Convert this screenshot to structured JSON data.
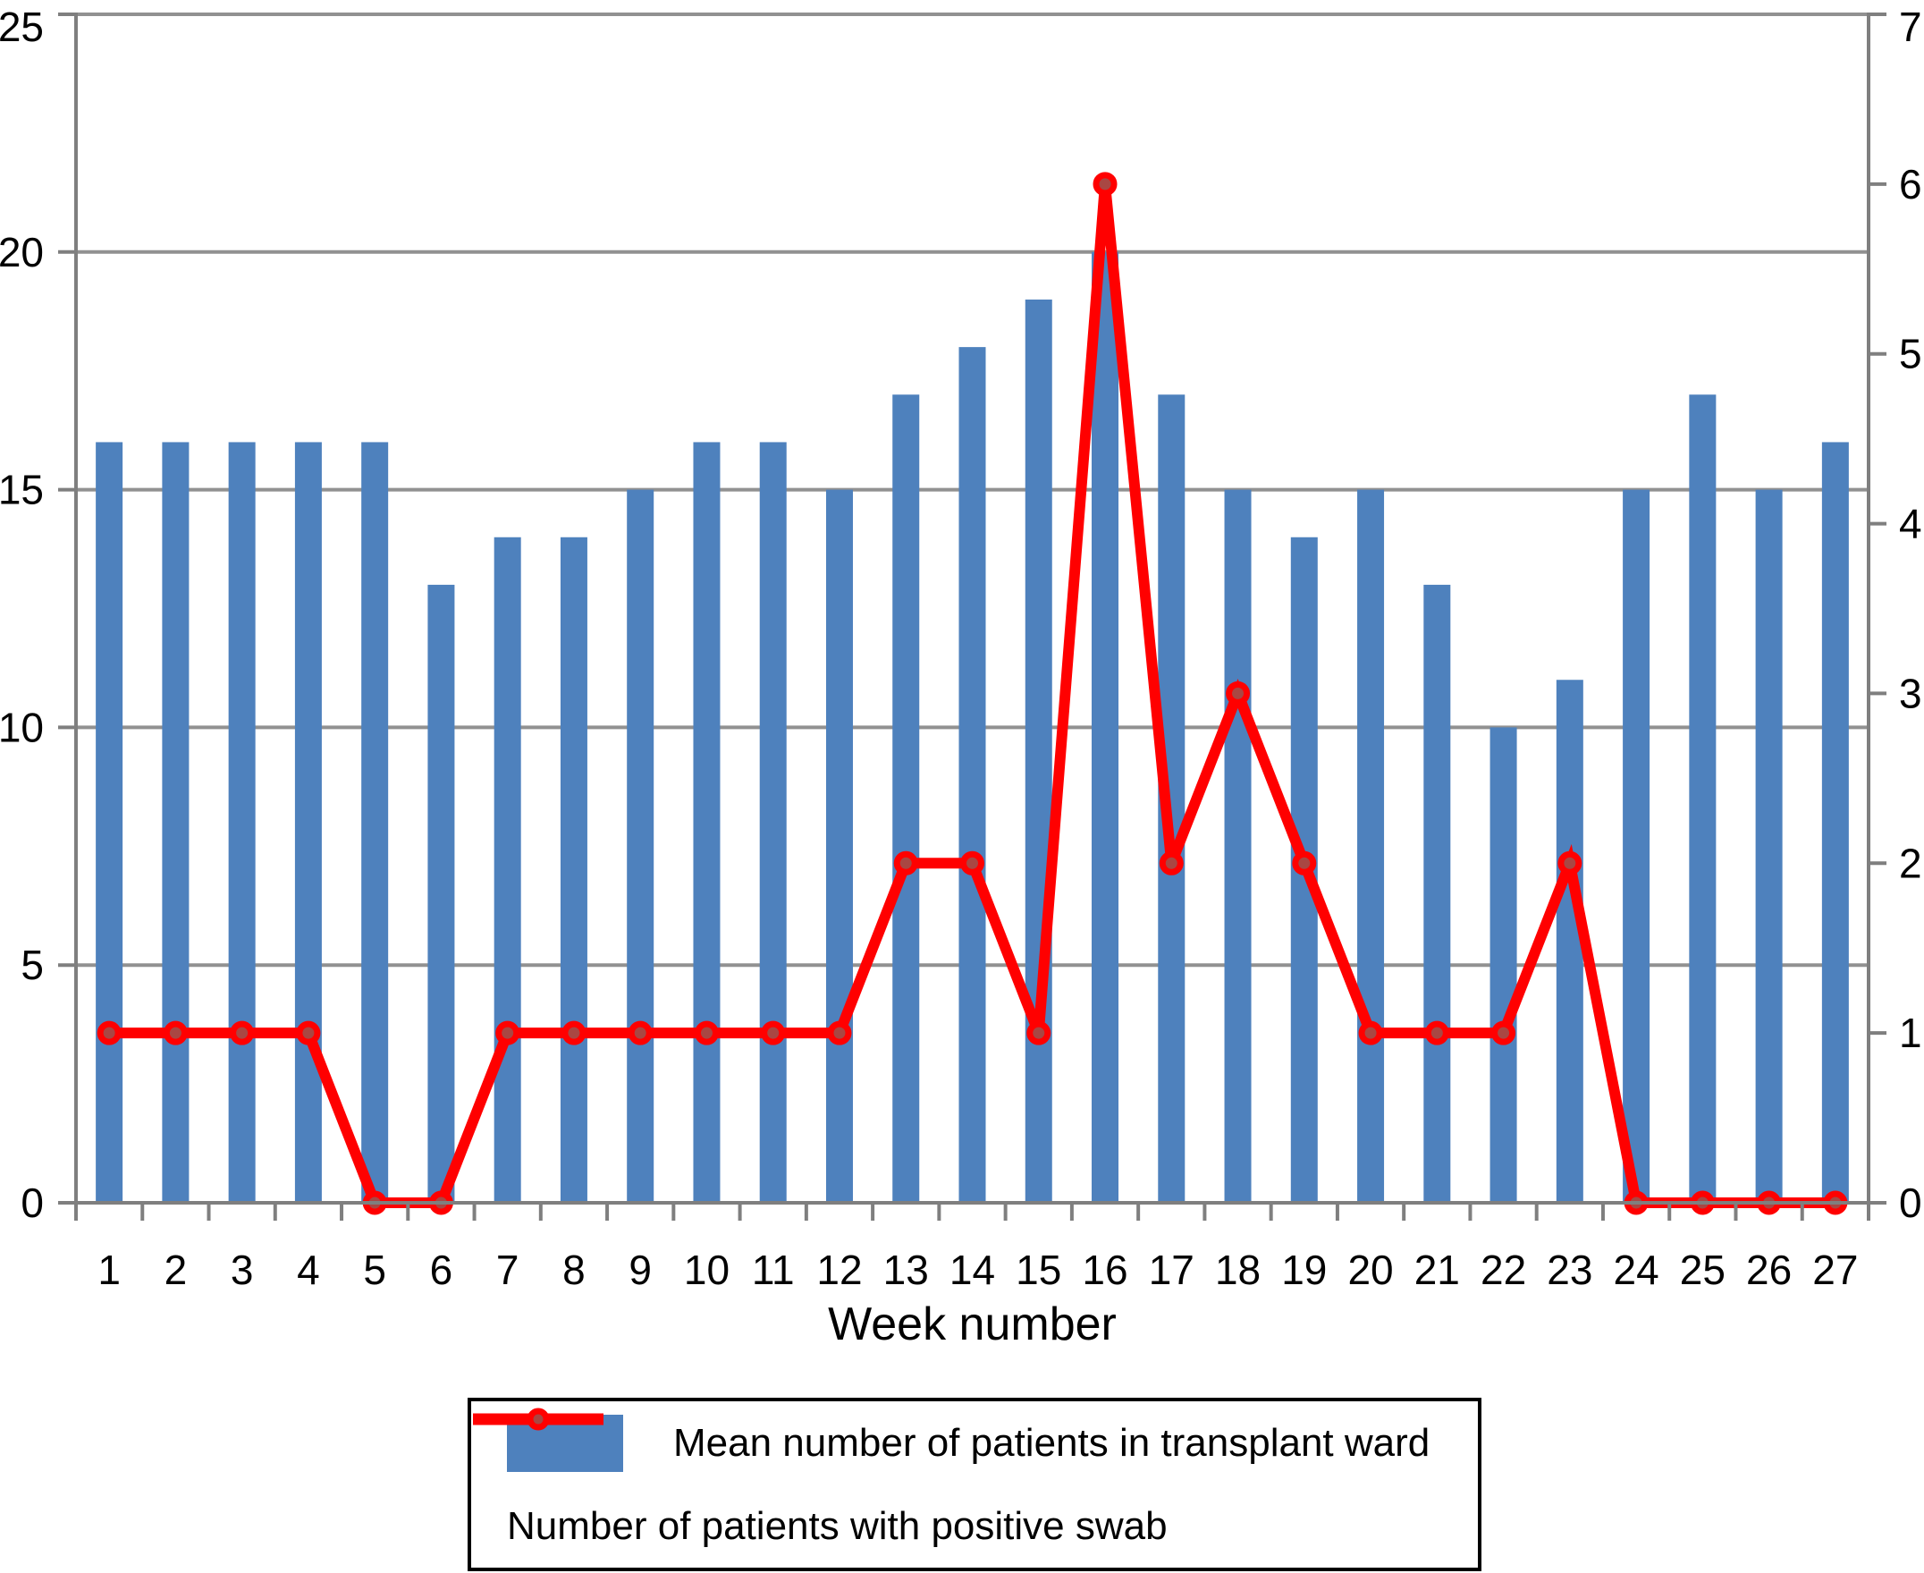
{
  "chart_data": {
    "type": "combo-bar-line",
    "title": "",
    "xlabel": "Week number",
    "categories": [
      "1",
      "2",
      "3",
      "4",
      "5",
      "6",
      "7",
      "8",
      "9",
      "10",
      "11",
      "12",
      "13",
      "14",
      "15",
      "16",
      "17",
      "18",
      "19",
      "20",
      "21",
      "22",
      "23",
      "24",
      "25",
      "26",
      "27"
    ],
    "left_axis": {
      "min": 0,
      "max": 25,
      "step": 5,
      "ticks": [
        "0",
        "5",
        "10",
        "15",
        "20",
        "25"
      ]
    },
    "right_axis": {
      "min": 0,
      "max": 7,
      "step": 1,
      "ticks": [
        "0",
        "1",
        "2",
        "3",
        "4",
        "5",
        "6",
        "7"
      ]
    },
    "grid": true,
    "legend_position": "bottom",
    "series": [
      {
        "name": "Mean number of patients in transplant ward",
        "type": "bar",
        "axis": "left",
        "color": "#4E81BD",
        "values": [
          16,
          16,
          16,
          16,
          16,
          13,
          14,
          14,
          15,
          16,
          16,
          15,
          17,
          18,
          19,
          20,
          17,
          15,
          14,
          15,
          13,
          10,
          11,
          15,
          17,
          15,
          16
        ]
      },
      {
        "name": "Number of patients with positive swab",
        "type": "line",
        "axis": "right",
        "color": "#FF0000",
        "marker_fill": "#A94743",
        "values": [
          1,
          1,
          1,
          1,
          0,
          0,
          1,
          1,
          1,
          1,
          1,
          1,
          2,
          2,
          1,
          6,
          2,
          3,
          2,
          1,
          1,
          1,
          2,
          0,
          0,
          0,
          0
        ]
      }
    ],
    "style": {
      "grid_color": "#919191",
      "axis_color": "#7F7F7F",
      "text_color": "#000000",
      "legend_border_color": "#000000",
      "background_color": "#FFFFFF"
    }
  }
}
